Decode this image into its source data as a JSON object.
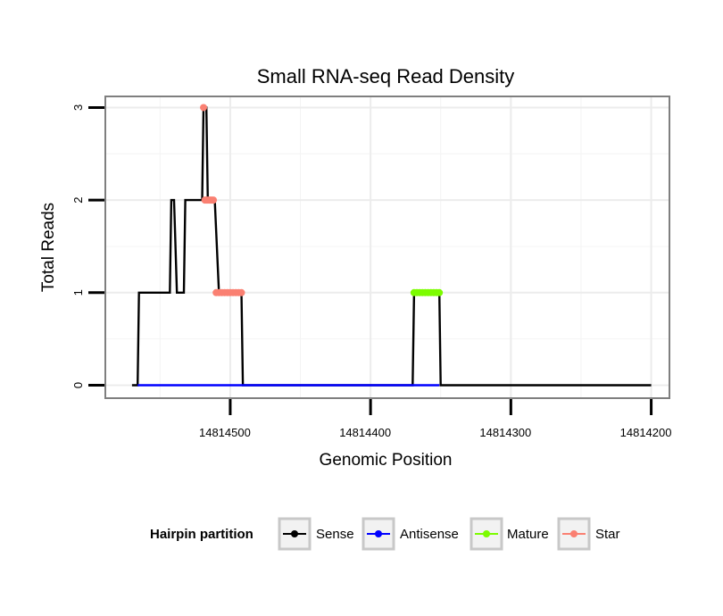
{
  "chart_data": {
    "type": "line",
    "title": "Small RNA-seq Read Density",
    "xlabel": "Genomic Position",
    "ylabel": "Total Reads",
    "x_reversed": true,
    "xlim": [
      14814589,
      14814187
    ],
    "ylim": [
      -0.14,
      3.12
    ],
    "x_ticks": [
      14814500,
      14814400,
      14814300,
      14814200
    ],
    "x_tick_labels": [
      "14814500",
      "14814400",
      "14814300",
      "14814200"
    ],
    "y_ticks": [
      0,
      1,
      2,
      3
    ],
    "y_tick_labels": [
      "0",
      "1",
      "2",
      "3"
    ],
    "grid": true,
    "legend": {
      "title": "Hairpin partition",
      "position": "bottom",
      "entries": [
        {
          "name": "Sense",
          "color": "#000000"
        },
        {
          "name": "Antisense",
          "color": "#0000ff"
        },
        {
          "name": "Mature",
          "color": "#7cfc00"
        },
        {
          "name": "Star",
          "color": "#fa8072"
        }
      ]
    },
    "series": [
      {
        "name": "Sense",
        "color": "#000000",
        "style": "line",
        "x": [
          14814570,
          14814566,
          14814565,
          14814543,
          14814542,
          14814540,
          14814538,
          14814533,
          14814532,
          14814520,
          14814519,
          14814517,
          14814516,
          14814514,
          14814512,
          14814511,
          14814508,
          14814507,
          14814492,
          14814491,
          14814450,
          14814449,
          14814451,
          14814370,
          14814369,
          14814351,
          14814350,
          14814200
        ],
        "values": [
          0,
          0,
          1,
          1,
          2,
          2,
          1,
          1,
          2,
          2,
          3,
          3,
          2,
          2,
          2,
          2,
          1,
          1,
          1,
          0,
          0,
          0,
          0,
          0,
          1,
          1,
          0,
          0
        ]
      },
      {
        "name": "Antisense",
        "color": "#0000ff",
        "style": "line",
        "x": [
          14814566,
          14814491,
          14814370,
          14814351
        ],
        "values": [
          0,
          0,
          0,
          0
        ]
      },
      {
        "name": "Mature",
        "color": "#7cfc00",
        "style": "points",
        "x": [
          14814369,
          14814367,
          14814365,
          14814363,
          14814361,
          14814359,
          14814357,
          14814355,
          14814353,
          14814351
        ],
        "values": [
          1,
          1,
          1,
          1,
          1,
          1,
          1,
          1,
          1,
          1
        ]
      },
      {
        "name": "Star",
        "color": "#fa8072",
        "style": "points",
        "x": [
          14814519,
          14814518,
          14814517,
          14814516,
          14814515,
          14814514,
          14814513,
          14814512,
          14814510,
          14814508,
          14814506,
          14814504,
          14814502,
          14814500,
          14814498,
          14814496,
          14814494,
          14814492
        ],
        "values": [
          3,
          2,
          2,
          2,
          2,
          2,
          2,
          2,
          1,
          1,
          1,
          1,
          1,
          1,
          1,
          1,
          1,
          1
        ]
      }
    ]
  }
}
